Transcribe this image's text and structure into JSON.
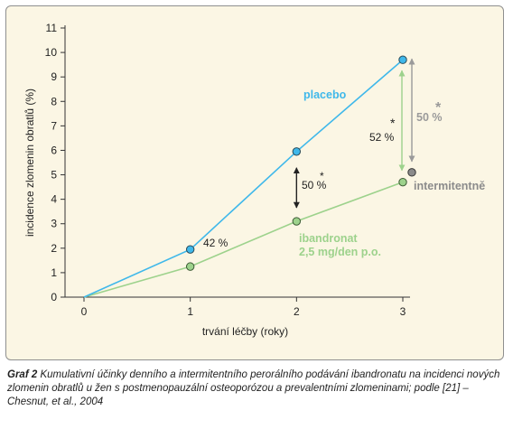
{
  "chart_data": {
    "type": "line",
    "xlabel": "trvání léčby (roky)",
    "ylabel": "incidence zlomenin obratlů (%)",
    "xlim": [
      0,
      3
    ],
    "ylim": [
      0,
      11
    ],
    "x_ticks": [
      0,
      1,
      2,
      3
    ],
    "y_ticks": [
      0,
      1,
      2,
      3,
      4,
      5,
      6,
      7,
      8,
      9,
      10,
      11
    ],
    "grid": false,
    "series": [
      {
        "name": "placebo",
        "x": [
          0,
          1,
          2,
          3
        ],
        "values": [
          0,
          1.95,
          5.95,
          9.7
        ],
        "color": "#3fb8ea"
      },
      {
        "name": "ibandronat 2,5 mg/den p.o.",
        "name_lines": [
          "ibandronat",
          "2,5 mg/den p.o."
        ],
        "x": [
          0,
          1,
          2,
          3
        ],
        "values": [
          0,
          1.25,
          3.1,
          4.7
        ],
        "color": "#9dd28c"
      },
      {
        "name": "intermitentně",
        "x": [
          3
        ],
        "values": [
          5.1
        ],
        "color": "#8b8b8b"
      }
    ],
    "annotations": [
      {
        "text": "42 %",
        "star": false
      },
      {
        "text": "50 %",
        "star": true
      },
      {
        "text": "52 %",
        "star": true
      },
      {
        "text": "50 %",
        "star": true
      }
    ],
    "star_symbol": "*"
  },
  "caption": {
    "label": "Graf 2",
    "text": "Kumulativní účinky denního a intermitentního perorálního podávání ibandronatu na incidenci nových zlomenin obratlů u žen s postmenopauzální osteoporózou a prevalentními zlomeninami; podle [21] – Chesnut, et al., 2004"
  }
}
